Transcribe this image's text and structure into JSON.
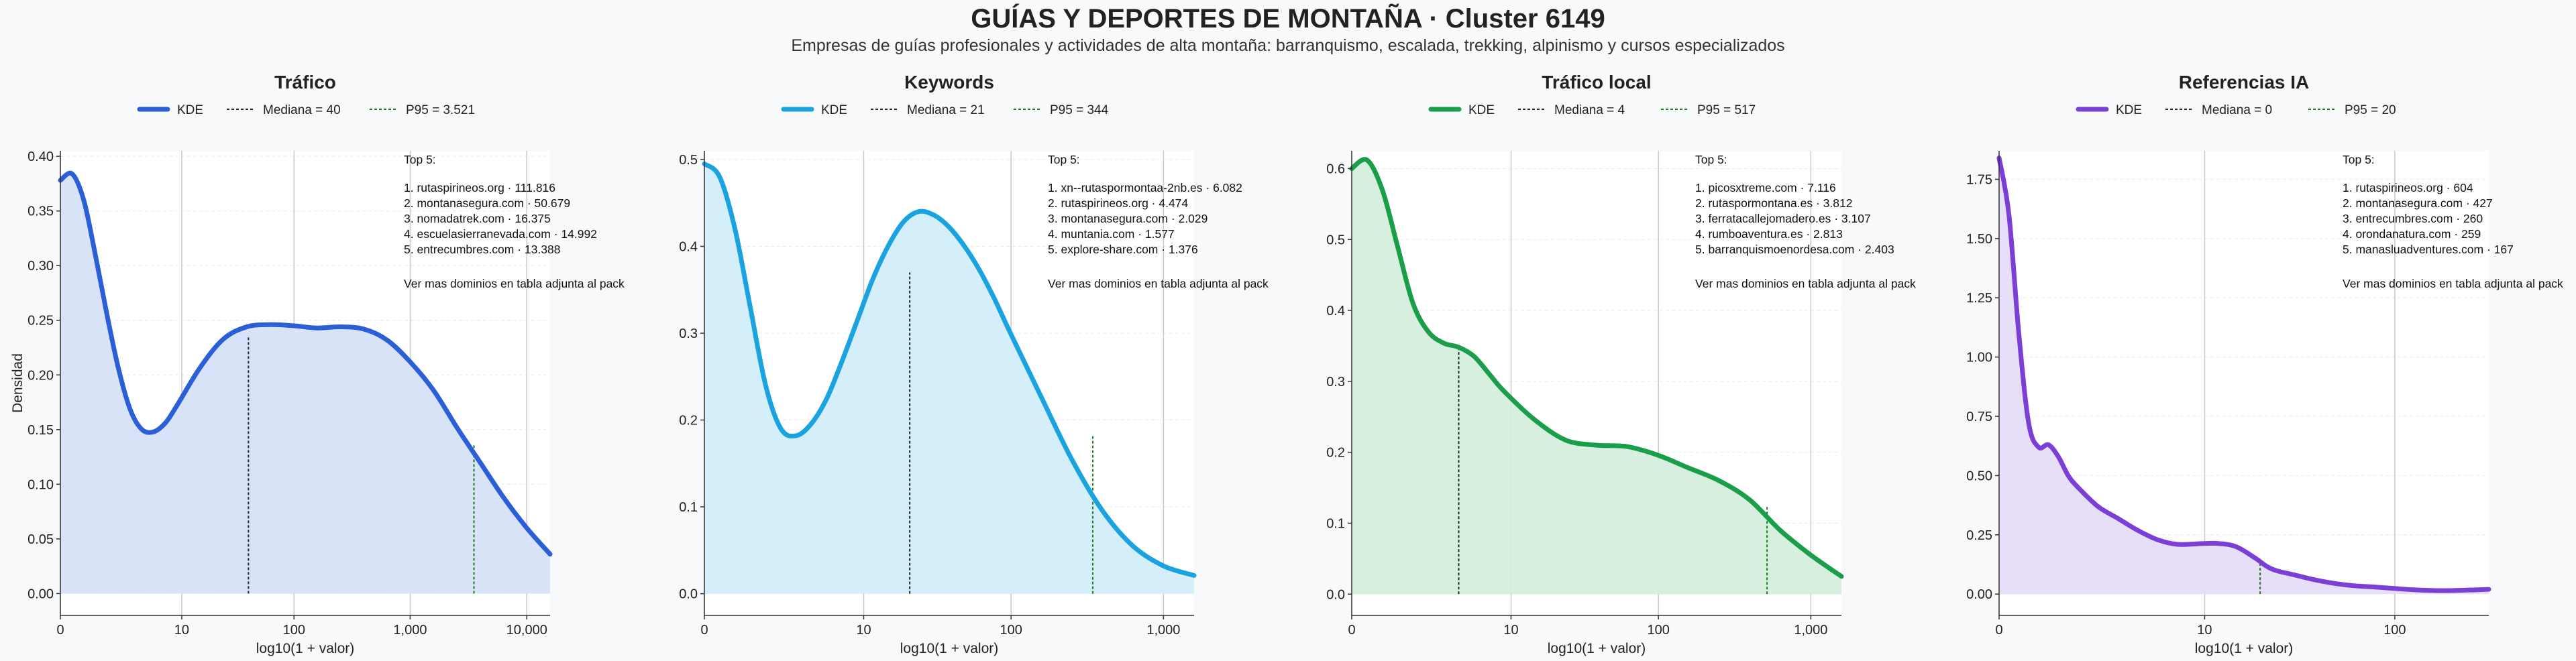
{
  "title": "GUÍAS Y DEPORTES DE MONTAÑA · Cluster 6149",
  "subtitle": "Empresas de guías profesionales y actividades de alta montaña: barranquismo, escalada, trekking, alpinismo y cursos especializados",
  "colors": {
    "background": "#f7f9fb",
    "median_line": "#222222",
    "p95_line": "#1a7a1a",
    "grid": "#c8c8c8"
  },
  "chart_data": [
    {
      "type": "area",
      "title": "Tráfico",
      "xlabel": "log10(1 + valor)",
      "ylabel": "Densidad",
      "x_scale": "log10(1 + valor)",
      "xlim": [
        0,
        4.2
      ],
      "ylim": [
        -0.02,
        0.405
      ],
      "yticks": [
        0,
        0.05,
        0.1,
        0.15,
        0.2,
        0.25,
        0.3,
        0.35,
        0.4
      ],
      "ytick_labels": [
        "0.00",
        "0.05",
        "0.10",
        "0.15",
        "0.20",
        "0.25",
        "0.30",
        "0.35",
        "0.40"
      ],
      "xticks": [
        0,
        1.041,
        2.004,
        3.0,
        4.0
      ],
      "xtick_labels": [
        "0",
        "10",
        "100",
        "1,000",
        "10,000"
      ],
      "color": "#2a5fd8",
      "fill": "#d6e1f8",
      "series": [
        {
          "name": "KDE",
          "x": [
            0,
            0.1,
            0.2,
            0.3,
            0.4,
            0.5,
            0.6,
            0.7,
            0.8,
            0.9,
            1.0,
            1.2,
            1.4,
            1.6,
            1.8,
            2.0,
            2.2,
            2.4,
            2.6,
            2.8,
            3.0,
            3.2,
            3.4,
            3.6,
            3.8,
            4.0,
            4.2
          ],
          "y": [
            0.378,
            0.384,
            0.36,
            0.31,
            0.255,
            0.205,
            0.168,
            0.15,
            0.148,
            0.156,
            0.172,
            0.207,
            0.233,
            0.244,
            0.246,
            0.245,
            0.243,
            0.244,
            0.242,
            0.232,
            0.212,
            0.186,
            0.152,
            0.12,
            0.088,
            0.06,
            0.036
          ]
        }
      ],
      "median": {
        "label": "Mediana = 40",
        "x": 1.613,
        "y": 0.236
      },
      "p95": {
        "label": "P95 = 3.521",
        "x": 3.547,
        "y": 0.136
      },
      "annotation": {
        "header": "Top 5:",
        "items": [
          "1. rutaspirineos.org · 111.816",
          "2. montanasegura.com · 50.679",
          "3. nomadatrek.com · 16.375",
          "4. escuelasierranevada.com · 14.992",
          "5. entrecumbres.com · 13.388"
        ],
        "footer": "Ver mas dominios en tabla adjunta al pack"
      }
    },
    {
      "type": "area",
      "title": "Keywords",
      "xlabel": "log10(1 + valor)",
      "ylabel": "",
      "x_scale": "log10(1 + valor)",
      "xlim": [
        0,
        3.2
      ],
      "ylim": [
        -0.025,
        0.51
      ],
      "yticks": [
        0,
        0.1,
        0.2,
        0.3,
        0.4,
        0.5
      ],
      "ytick_labels": [
        "0.0",
        "0.1",
        "0.2",
        "0.3",
        "0.4",
        "0.5"
      ],
      "xticks": [
        0,
        1.041,
        2.004,
        3.0
      ],
      "xtick_labels": [
        "0",
        "10",
        "100",
        "1,000"
      ],
      "color": "#1ba3e0",
      "fill": "#d2eefa",
      "series": [
        {
          "name": "KDE",
          "x": [
            0,
            0.1,
            0.2,
            0.3,
            0.4,
            0.5,
            0.6,
            0.7,
            0.8,
            0.9,
            1.0,
            1.1,
            1.2,
            1.3,
            1.4,
            1.5,
            1.6,
            1.7,
            1.8,
            1.9,
            2.0,
            2.2,
            2.4,
            2.6,
            2.8,
            3.0,
            3.2
          ],
          "y": [
            0.495,
            0.48,
            0.42,
            0.33,
            0.24,
            0.19,
            0.182,
            0.196,
            0.225,
            0.268,
            0.315,
            0.362,
            0.4,
            0.428,
            0.44,
            0.436,
            0.422,
            0.4,
            0.372,
            0.338,
            0.3,
            0.227,
            0.155,
            0.096,
            0.055,
            0.032,
            0.021
          ]
        }
      ],
      "median": {
        "label": "Mediana = 21",
        "x": 1.342,
        "y": 0.37
      },
      "p95": {
        "label": "P95 = 344",
        "x": 2.538,
        "y": 0.183
      },
      "annotation": {
        "header": "Top 5:",
        "items": [
          "1. xn--rutaspormontaa-2nb.es · 6.082",
          "2. rutaspirineos.org · 4.474",
          "3. montanasegura.com · 2.029",
          "4. muntania.com · 1.577",
          "5. explore-share.com · 1.376"
        ],
        "footer": "Ver mas dominios en tabla adjunta al pack"
      }
    },
    {
      "type": "area",
      "title": "Tráfico local",
      "xlabel": "log10(1 + valor)",
      "ylabel": "",
      "x_scale": "log10(1 + valor)",
      "xlim": [
        0,
        3.2
      ],
      "ylim": [
        -0.03,
        0.625
      ],
      "yticks": [
        0,
        0.1,
        0.2,
        0.3,
        0.4,
        0.5,
        0.6
      ],
      "ytick_labels": [
        "0.0",
        "0.1",
        "0.2",
        "0.3",
        "0.4",
        "0.5",
        "0.6"
      ],
      "xticks": [
        0,
        1.041,
        2.004,
        3.0
      ],
      "xtick_labels": [
        "0",
        "10",
        "100",
        "1,000"
      ],
      "color": "#1a9e4a",
      "fill": "#d4eedc",
      "series": [
        {
          "name": "KDE",
          "x": [
            0,
            0.1,
            0.2,
            0.3,
            0.4,
            0.5,
            0.6,
            0.7,
            0.8,
            0.9,
            1.0,
            1.2,
            1.4,
            1.6,
            1.8,
            2.0,
            2.2,
            2.4,
            2.6,
            2.8,
            3.0,
            3.2
          ],
          "y": [
            0.6,
            0.612,
            0.57,
            0.49,
            0.41,
            0.37,
            0.354,
            0.348,
            0.335,
            0.31,
            0.285,
            0.245,
            0.217,
            0.21,
            0.208,
            0.196,
            0.178,
            0.16,
            0.133,
            0.09,
            0.055,
            0.025
          ]
        }
      ],
      "median": {
        "label": "Mediana = 4",
        "x": 0.699,
        "y": 0.348
      },
      "p95": {
        "label": "P95 = 517",
        "x": 2.714,
        "y": 0.125
      },
      "annotation": {
        "header": "Top 5:",
        "items": [
          "1. picosxtreme.com · 7.116",
          "2. rutaspormontana.es · 3.812",
          "3. ferratacallejomadero.es · 3.107",
          "4. rumboaventura.es · 2.813",
          "5. barranquismoenordesa.com · 2.403"
        ],
        "footer": "Ver mas dominios en tabla adjunta al pack"
      }
    },
    {
      "type": "area",
      "title": "Referencias IA",
      "xlabel": "log10(1 + valor)",
      "ylabel": "",
      "x_scale": "log10(1 + valor)",
      "xlim": [
        0,
        2.48
      ],
      "ylim": [
        -0.09,
        1.87
      ],
      "yticks": [
        0,
        0.25,
        0.5,
        0.75,
        1.0,
        1.25,
        1.5,
        1.75
      ],
      "ytick_labels": [
        "0.00",
        "0.25",
        "0.50",
        "0.75",
        "1.00",
        "1.25",
        "1.50",
        "1.75"
      ],
      "xticks": [
        0,
        1.041,
        2.004
      ],
      "xtick_labels": [
        "0",
        "10",
        "100"
      ],
      "color": "#7b3fd8",
      "fill": "#e6dcf8",
      "series": [
        {
          "name": "KDE",
          "x": [
            0,
            0.05,
            0.1,
            0.15,
            0.2,
            0.25,
            0.3,
            0.35,
            0.4,
            0.5,
            0.6,
            0.7,
            0.8,
            0.9,
            1.0,
            1.1,
            1.2,
            1.3,
            1.35,
            1.4,
            1.5,
            1.6,
            1.7,
            1.8,
            1.9,
            2.0,
            2.1,
            2.2,
            2.3,
            2.48
          ],
          "y": [
            1.84,
            1.6,
            1.1,
            0.72,
            0.62,
            0.63,
            0.58,
            0.5,
            0.45,
            0.37,
            0.32,
            0.27,
            0.23,
            0.21,
            0.212,
            0.214,
            0.2,
            0.15,
            0.12,
            0.1,
            0.08,
            0.06,
            0.045,
            0.035,
            0.03,
            0.024,
            0.018,
            0.015,
            0.015,
            0.02
          ]
        }
      ],
      "median": {
        "label": "Mediana = 0",
        "x": 0,
        "y": 1.84
      },
      "p95": {
        "label": "P95 = 20",
        "x": 1.322,
        "y": 0.135
      },
      "annotation": {
        "header": "Top 5:",
        "items": [
          "1. rutaspirineos.org · 604",
          "2. montanasegura.com · 427",
          "3. entrecumbres.com · 260",
          "4. orondanatura.com · 259",
          "5. manasluadventures.com · 167"
        ],
        "footer": "Ver mas dominios en tabla adjunta al pack"
      }
    }
  ]
}
